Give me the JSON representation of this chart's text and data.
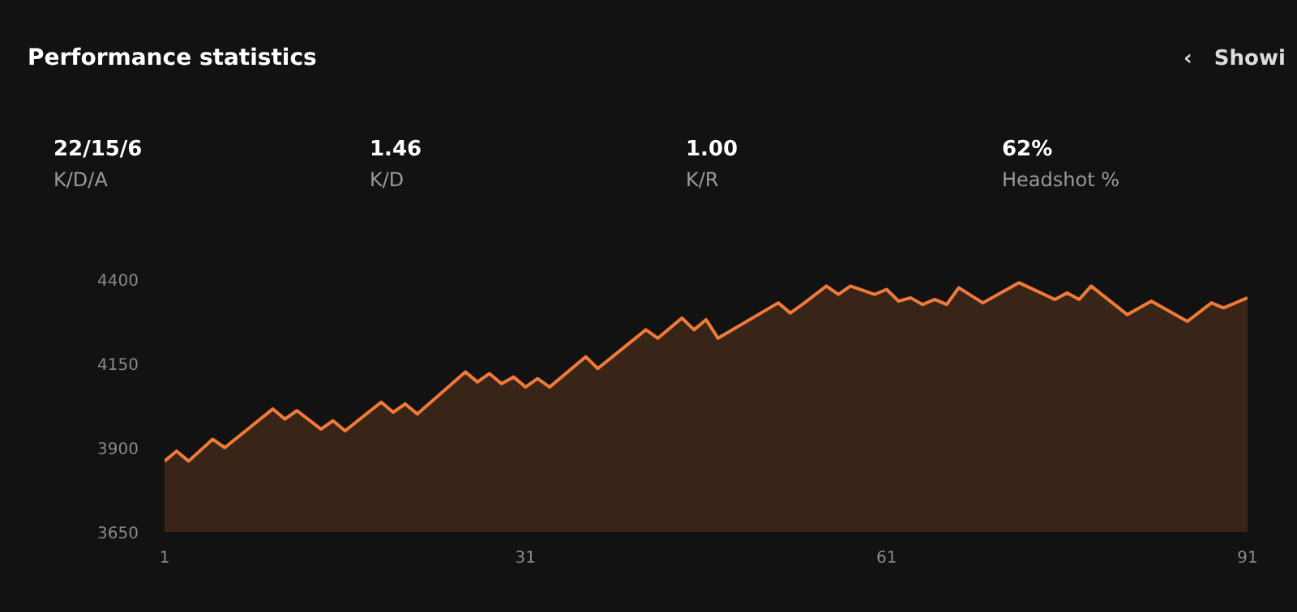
{
  "chart_data": [
    {
      "type": "other",
      "title": "Performance statistics",
      "annotations": [
        "‹",
        "Showi",
        "22/15/6",
        "K/D/A",
        "1.46",
        "K/D",
        "1.00",
        "K/R",
        "62%",
        "Headshot %"
      ]
    },
    {
      "type": "area",
      "x": [
        1,
        2,
        3,
        5,
        6,
        10,
        11,
        12,
        14,
        15,
        16,
        19,
        20,
        21,
        22,
        26,
        27,
        28,
        29,
        30,
        31,
        32,
        33,
        36,
        37,
        41,
        42,
        44,
        45,
        46,
        47,
        52,
        53,
        54,
        56,
        57,
        58,
        60,
        61,
        62,
        63,
        64,
        65,
        66,
        67,
        69,
        72,
        75,
        76,
        77,
        78,
        81,
        83,
        86,
        88,
        89,
        91
      ],
      "series": [
        {
          "color": "#f07a3a",
          "values": [
            3860,
            3890,
            3860,
            3925,
            3900,
            4015,
            3985,
            4010,
            3955,
            3980,
            3950,
            4035,
            4005,
            4030,
            4000,
            4125,
            4095,
            4120,
            4090,
            4110,
            4080,
            4105,
            4080,
            4170,
            4135,
            4250,
            4225,
            4285,
            4250,
            4280,
            4225,
            4330,
            4300,
            4325,
            4380,
            4355,
            4380,
            4355,
            4370,
            4335,
            4345,
            4325,
            4340,
            4325,
            4375,
            4330,
            4390,
            4340,
            4360,
            4340,
            4380,
            4295,
            4335,
            4275,
            4330,
            4315,
            4345
          ]
        }
      ],
      "xlim": [
        1,
        91
      ],
      "xticks": [
        1,
        31,
        61,
        91
      ],
      "ylim": [
        3650,
        4400
      ],
      "yticks": [
        3650,
        3900,
        4150,
        4400
      ],
      "grid": false
    }
  ]
}
